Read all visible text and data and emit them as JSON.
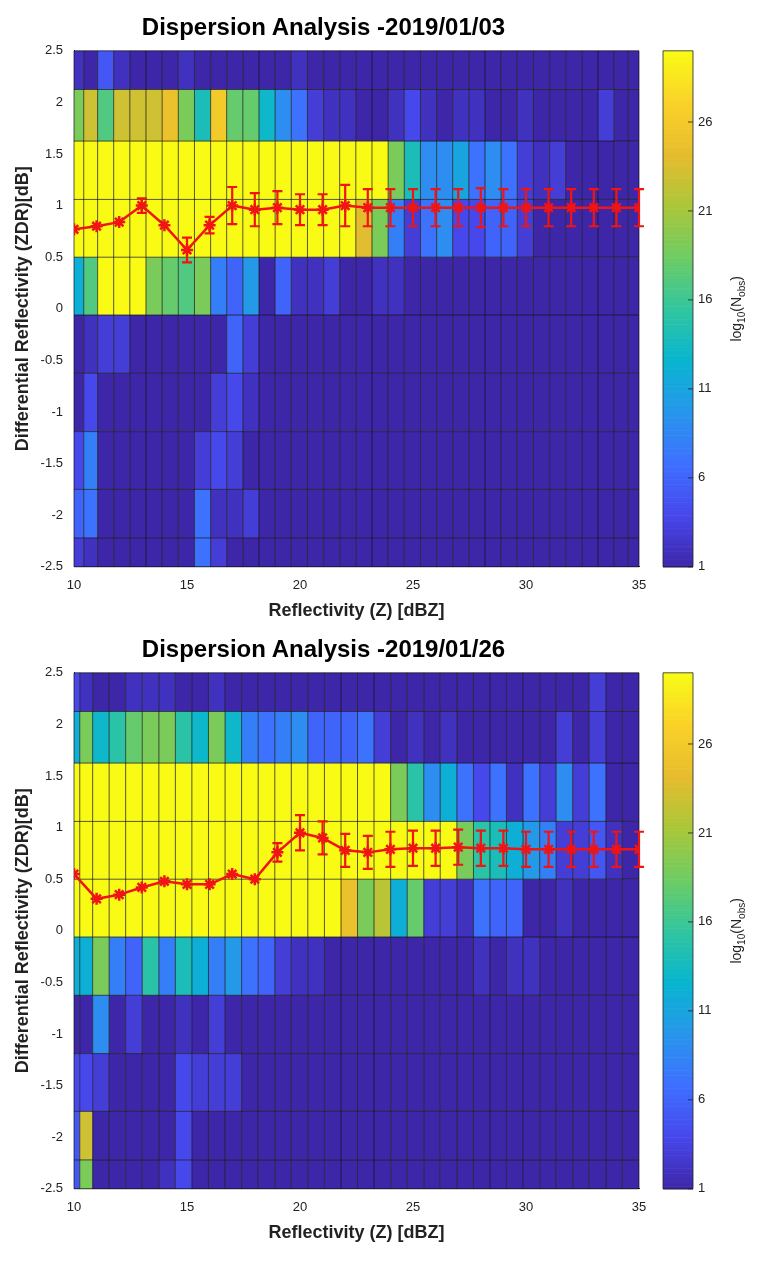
{
  "chart_data": [
    {
      "type": "heatmap",
      "title": "Dispersion Analysis -2019/01/03",
      "xlabel": "Reflectivity (Z) [dBZ]",
      "ylabel": "Differential Reflectivity (ZDR)[dB]",
      "clabel": "log$_{10}$(N$_{obs}$)",
      "x": [
        10.17,
        10.69,
        11.4,
        12.11,
        12.83,
        13.54,
        14.26,
        14.97,
        15.69,
        16.4,
        17.11,
        17.83,
        18.54,
        19.26,
        19.97,
        20.69,
        21.4,
        22.11,
        22.83,
        23.54,
        24.26,
        24.97,
        25.69,
        26.4,
        27.11,
        27.83,
        28.54,
        29.26,
        29.97,
        30.69,
        31.4,
        32.11,
        32.83,
        33.54,
        34.26,
        34.8
      ],
      "y": [
        2.34,
        1.91,
        1.34,
        0.78,
        0.22,
        -0.34,
        -0.91,
        -1.47,
        -2.03,
        -2.41
      ],
      "cells": [
        [
          2,
          1,
          5,
          2,
          1,
          1,
          1,
          2,
          1,
          1,
          1,
          1,
          1,
          1,
          2,
          1,
          1,
          1,
          1,
          1,
          1,
          1,
          1,
          1,
          1,
          1,
          1,
          1,
          1,
          1,
          1,
          1,
          1,
          1,
          1,
          1
        ],
        [
          19,
          23,
          17,
          23,
          23,
          23,
          25,
          19,
          14,
          26,
          18,
          18,
          13,
          9,
          7,
          3,
          2,
          2,
          1,
          1,
          2,
          4,
          2,
          1,
          2,
          2,
          1,
          1,
          2,
          1,
          1,
          1,
          1,
          3,
          1,
          1
        ],
        [
          30,
          30,
          30,
          30,
          30,
          30,
          30,
          30,
          30,
          30,
          30,
          30,
          30,
          30,
          30,
          30,
          30,
          30,
          30,
          30,
          19,
          14,
          9,
          9,
          11,
          7,
          9,
          7,
          3,
          2,
          3,
          1,
          1,
          1,
          1,
          1
        ],
        [
          30,
          30,
          30,
          30,
          30,
          30,
          30,
          30,
          30,
          30,
          30,
          30,
          30,
          30,
          30,
          30,
          30,
          30,
          24,
          19,
          8,
          3,
          7,
          9,
          4,
          4,
          6,
          6,
          3,
          1,
          1,
          1,
          1,
          1,
          1,
          1
        ],
        [
          12,
          17,
          30,
          30,
          30,
          19,
          18,
          17,
          19,
          8,
          6,
          10,
          1,
          6,
          2,
          2,
          3,
          1,
          1,
          2,
          2,
          1,
          1,
          1,
          1,
          1,
          1,
          1,
          1,
          1,
          1,
          1,
          1,
          1,
          1,
          1
        ],
        [
          1,
          2,
          3,
          3,
          1,
          1,
          1,
          1,
          1,
          1,
          6,
          3,
          1,
          1,
          1,
          1,
          1,
          1,
          1,
          1,
          1,
          1,
          1,
          1,
          1,
          1,
          1,
          1,
          1,
          1,
          1,
          1,
          1,
          1,
          1,
          1
        ],
        [
          1,
          4,
          1,
          1,
          1,
          1,
          1,
          1,
          1,
          3,
          4,
          2,
          1,
          1,
          1,
          1,
          1,
          1,
          1,
          1,
          1,
          1,
          1,
          1,
          1,
          1,
          1,
          1,
          1,
          1,
          1,
          1,
          1,
          1,
          1,
          1
        ],
        [
          4,
          8,
          1,
          1,
          1,
          1,
          1,
          1,
          3,
          4,
          3,
          1,
          1,
          1,
          1,
          1,
          1,
          1,
          1,
          1,
          1,
          1,
          1,
          1,
          1,
          1,
          1,
          1,
          1,
          1,
          1,
          1,
          1,
          1,
          1,
          1
        ],
        [
          6,
          7,
          1,
          1,
          1,
          1,
          1,
          1,
          7,
          2,
          2,
          3,
          1,
          1,
          1,
          1,
          1,
          1,
          1,
          1,
          1,
          1,
          1,
          1,
          1,
          1,
          1,
          1,
          1,
          1,
          1,
          1,
          1,
          1,
          1,
          1
        ],
        [
          3,
          2,
          1,
          1,
          1,
          1,
          1,
          1,
          7,
          3,
          1,
          1,
          1,
          1,
          1,
          1,
          1,
          1,
          1,
          1,
          1,
          1,
          1,
          1,
          1,
          1,
          1,
          1,
          1,
          1,
          1,
          1,
          1,
          1,
          1,
          1
        ]
      ],
      "clim": [
        1,
        30
      ],
      "cticks": [
        1,
        6,
        11,
        16,
        21,
        26
      ],
      "xlim": [
        10,
        35
      ],
      "xticks": [
        10,
        15,
        20,
        25,
        30,
        35
      ],
      "ylim": [
        -2.5,
        2.5
      ],
      "yticks": [
        -2.5,
        -2,
        -1.5,
        -1,
        -0.5,
        0,
        0.5,
        1,
        1.5,
        2,
        2.5
      ],
      "marker": "cross",
      "series": [
        {
          "type": "line",
          "color": "#f01414",
          "x": [
            10,
            11,
            12,
            13,
            14,
            15,
            16,
            17,
            18,
            19,
            20,
            21,
            22,
            23,
            24,
            25,
            26,
            27,
            28,
            29,
            30,
            31,
            32,
            33,
            34,
            35
          ],
          "values": [
            0.77,
            0.8,
            0.84,
            1.0,
            0.81,
            0.57,
            0.81,
            1.0,
            0.96,
            0.98,
            0.96,
            0.96,
            1.0,
            0.98,
            0.98,
            0.98,
            0.98,
            0.98,
            0.98,
            0.98,
            0.98,
            0.98,
            0.98,
            0.98,
            0.98,
            0.98
          ],
          "errors": [
            null,
            null,
            null,
            0.07,
            null,
            0.12,
            0.08,
            0.18,
            0.16,
            0.16,
            0.15,
            0.15,
            0.2,
            0.18,
            0.18,
            0.18,
            0.18,
            0.18,
            0.19,
            0.18,
            0.18,
            0.18,
            0.18,
            0.18,
            0.18,
            0.18
          ]
        }
      ]
    },
    {
      "type": "heatmap",
      "title": "Dispersion Analysis -2019/01/26",
      "xlabel": "Reflectivity (Z) [dBZ]",
      "ylabel": "Differential Reflectivity (ZDR)[dB]",
      "clabel": "log$_{10}$(N$_{obs}$)",
      "x": [
        10.05,
        10.46,
        11.19,
        11.92,
        12.65,
        13.39,
        14.12,
        14.85,
        15.58,
        16.32,
        17.05,
        17.78,
        18.52,
        19.25,
        19.98,
        20.71,
        21.45,
        22.18,
        22.91,
        23.64,
        24.38,
        25.11,
        25.84,
        26.57,
        27.31,
        28.04,
        28.77,
        29.5,
        30.24,
        30.97,
        31.7,
        32.43,
        33.17,
        33.9,
        34.63
      ],
      "y": [
        2.34,
        1.91,
        1.34,
        0.78,
        0.22,
        -0.34,
        -0.91,
        -1.47,
        -2.03,
        -2.41
      ],
      "cells": [
        [
          4,
          2,
          1,
          1,
          2,
          2,
          2,
          1,
          1,
          2,
          1,
          1,
          1,
          1,
          1,
          1,
          1,
          1,
          1,
          1,
          1,
          1,
          1,
          1,
          1,
          1,
          1,
          1,
          1,
          1,
          1,
          1,
          3,
          1,
          1
        ],
        [
          12,
          19,
          13,
          15,
          18,
          19,
          19,
          15,
          13,
          19,
          13,
          8,
          7,
          8,
          9,
          6,
          6,
          6,
          7,
          3,
          1,
          2,
          1,
          2,
          1,
          1,
          1,
          1,
          1,
          1,
          3,
          1,
          3,
          1,
          1
        ],
        [
          30,
          30,
          30,
          30,
          30,
          30,
          30,
          30,
          30,
          30,
          30,
          30,
          30,
          30,
          30,
          30,
          30,
          30,
          30,
          30,
          19,
          15,
          9,
          12,
          7,
          4,
          7,
          2,
          7,
          3,
          9,
          3,
          7,
          1,
          1
        ],
        [
          30,
          30,
          30,
          30,
          30,
          30,
          30,
          30,
          30,
          30,
          30,
          30,
          30,
          30,
          30,
          30,
          30,
          30,
          30,
          30,
          30,
          30,
          30,
          30,
          19,
          15,
          14,
          12,
          10,
          8,
          3,
          3,
          5,
          2,
          1
        ],
        [
          30,
          30,
          30,
          30,
          30,
          30,
          30,
          30,
          30,
          30,
          30,
          30,
          30,
          30,
          30,
          30,
          30,
          25,
          19,
          22,
          12,
          18,
          3,
          3,
          2,
          7,
          6,
          6,
          1,
          1,
          2,
          1,
          1,
          1,
          1
        ],
        [
          12,
          12,
          19,
          8,
          6,
          15,
          8,
          14,
          12,
          8,
          10,
          7,
          6,
          3,
          2,
          2,
          1,
          1,
          1,
          1,
          1,
          1,
          1,
          1,
          1,
          2,
          1,
          2,
          2,
          1,
          1,
          1,
          1,
          1,
          1
        ],
        [
          1,
          1,
          9,
          1,
          3,
          1,
          1,
          2,
          1,
          3,
          1,
          1,
          1,
          1,
          1,
          1,
          1,
          1,
          1,
          1,
          1,
          1,
          1,
          1,
          1,
          1,
          1,
          1,
          1,
          1,
          1,
          1,
          1,
          1,
          1
        ],
        [
          4,
          4,
          3,
          1,
          1,
          1,
          1,
          4,
          3,
          3,
          3,
          1,
          1,
          1,
          1,
          1,
          1,
          1,
          1,
          1,
          1,
          1,
          1,
          1,
          1,
          1,
          1,
          1,
          1,
          1,
          1,
          1,
          1,
          1,
          1
        ],
        [
          5,
          23,
          1,
          1,
          1,
          1,
          1,
          4,
          1,
          1,
          1,
          1,
          1,
          1,
          1,
          1,
          1,
          1,
          1,
          1,
          1,
          1,
          1,
          1,
          1,
          1,
          1,
          1,
          1,
          1,
          1,
          1,
          1,
          1,
          1
        ],
        [
          5,
          19,
          1,
          1,
          1,
          1,
          2,
          4,
          1,
          1,
          1,
          1,
          1,
          1,
          1,
          1,
          1,
          1,
          1,
          1,
          1,
          1,
          1,
          1,
          1,
          1,
          1,
          1,
          1,
          1,
          1,
          1,
          1,
          1,
          1
        ]
      ],
      "clim": [
        1,
        30
      ],
      "cticks": [
        1,
        6,
        11,
        16,
        21,
        26
      ],
      "xlim": [
        10,
        35
      ],
      "xticks": [
        10,
        15,
        20,
        25,
        30,
        35
      ],
      "ylim": [
        -2.5,
        2.5
      ],
      "yticks": [
        -2.5,
        -2,
        -1.5,
        -1,
        -0.5,
        0,
        0.5,
        1,
        1.5,
        2,
        2.5
      ],
      "marker": "cross",
      "series": [
        {
          "type": "line",
          "color": "#f01414",
          "x": [
            10,
            11,
            12,
            13,
            14,
            15,
            16,
            17,
            18,
            19,
            20,
            21,
            22,
            23,
            24,
            25,
            26,
            27,
            28,
            29,
            30,
            31,
            32,
            33,
            34,
            35
          ],
          "values": [
            0.55,
            0.31,
            0.35,
            0.42,
            0.48,
            0.45,
            0.45,
            0.55,
            0.5,
            0.76,
            0.95,
            0.9,
            0.78,
            0.76,
            0.79,
            0.8,
            0.8,
            0.81,
            0.8,
            0.8,
            0.79,
            0.79,
            0.79,
            0.79,
            0.79,
            0.79
          ],
          "errors": [
            null,
            null,
            null,
            null,
            null,
            null,
            null,
            null,
            null,
            0.09,
            0.17,
            0.16,
            0.16,
            0.16,
            0.17,
            0.17,
            0.17,
            0.17,
            0.17,
            0.17,
            0.17,
            0.17,
            0.17,
            0.17,
            0.17,
            0.17
          ]
        }
      ]
    }
  ]
}
